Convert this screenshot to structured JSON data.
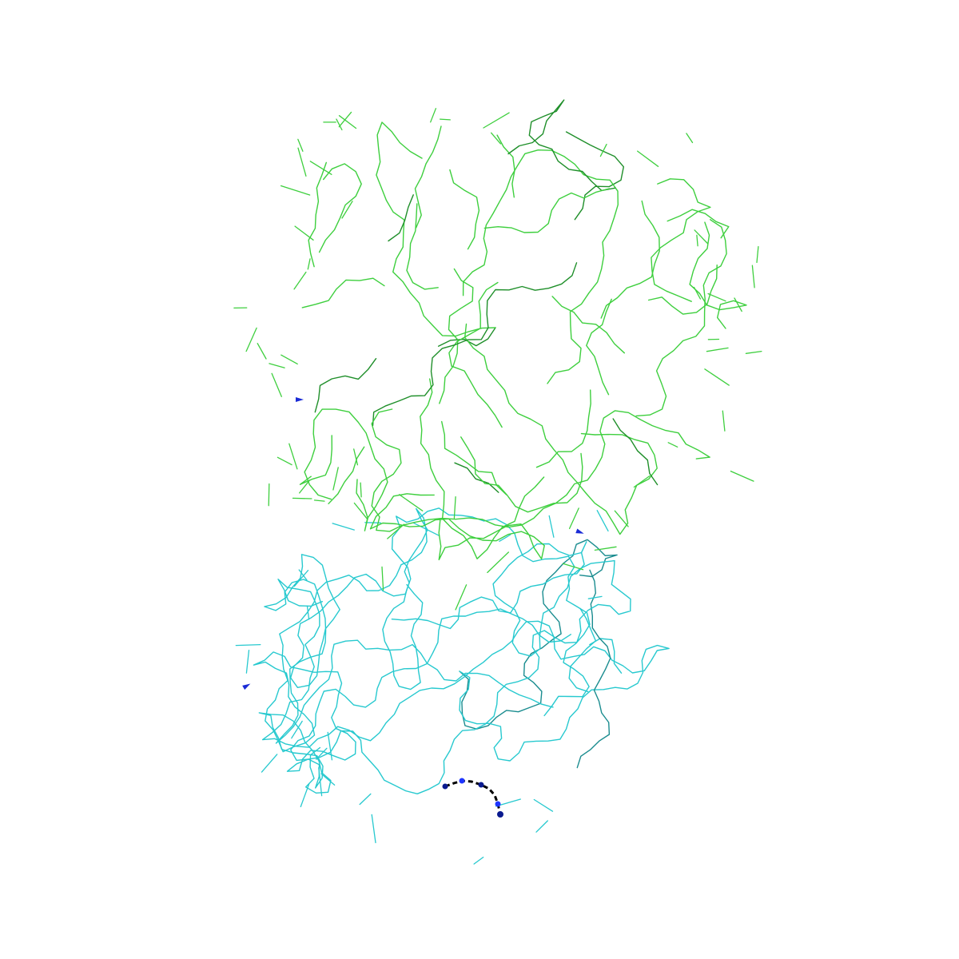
{
  "scene": {
    "background": "#ffffff",
    "representation": "backbone-trace",
    "chains": [
      {
        "id": "upper-chain",
        "color": "#3ecf3e",
        "shade": "#1f8f2a",
        "seed": 7,
        "segments": 520,
        "region": "upper"
      },
      {
        "id": "lower-chain",
        "color": "#27c9cf",
        "shade": "#1a8c8f",
        "seed": 19,
        "segments": 560,
        "region": "lower"
      }
    ],
    "ligand": {
      "color": "#0a1a8f",
      "highlight": "#1e35ff",
      "trace_color": "#000000"
    },
    "markers": [
      {
        "id": "marker-1",
        "color": "#1a2bd6"
      },
      {
        "id": "marker-2",
        "color": "#1a2bd6"
      },
      {
        "id": "marker-3",
        "color": "#1a2bd6"
      }
    ]
  }
}
